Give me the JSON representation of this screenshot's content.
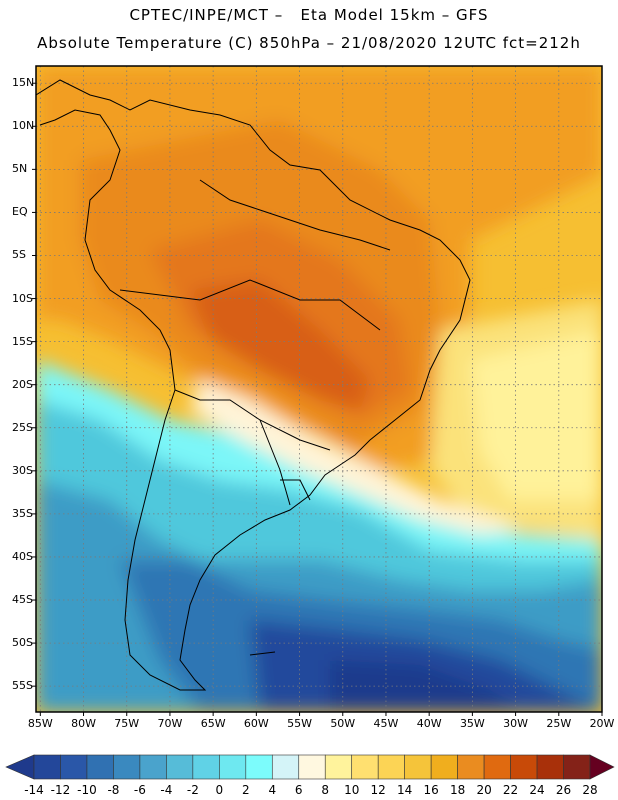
{
  "header": {
    "line1": "CPTEC/INPE/MCT –   Eta Model 15km – GFS",
    "line2": "Absolute Temperature (C) 850hPa – 21/08/2020 12UTC fct=212h"
  },
  "map": {
    "lat_labels": [
      "15N",
      "10N",
      "5N",
      "EQ",
      "5S",
      "10S",
      "15S",
      "20S",
      "25S",
      "30S",
      "35S",
      "40S",
      "45S",
      "50S",
      "55S"
    ],
    "lon_labels": [
      "85W",
      "80W",
      "75W",
      "70W",
      "65W",
      "60W",
      "55W",
      "50W",
      "45W",
      "40W",
      "35W",
      "30W",
      "25W",
      "20W"
    ],
    "lat_range": [
      17,
      -58
    ],
    "lon_range": [
      -85.5,
      -20
    ],
    "gridlines": "dotted"
  },
  "colorbar": {
    "labels": [
      "-14",
      "-12",
      "-10",
      "-8",
      "-6",
      "-4",
      "-2",
      "0",
      "2",
      "4",
      "6",
      "8",
      "10",
      "12",
      "14",
      "16",
      "18",
      "20",
      "22",
      "24",
      "26",
      "28"
    ],
    "colors": [
      "#1f3a8c",
      "#23479a",
      "#2a57a8",
      "#3071b2",
      "#3a89bf",
      "#4aa3cc",
      "#56bcd8",
      "#60d2e6",
      "#6ee8f0",
      "#7cfcfc",
      "#d4f4f8",
      "#fff8e0",
      "#fff39c",
      "#ffe070",
      "#fcd455",
      "#f5c43a",
      "#f0ae1e",
      "#ea8c20",
      "#e06a10",
      "#c84a08",
      "#a8300a",
      "#842218",
      "#650020"
    ]
  }
}
